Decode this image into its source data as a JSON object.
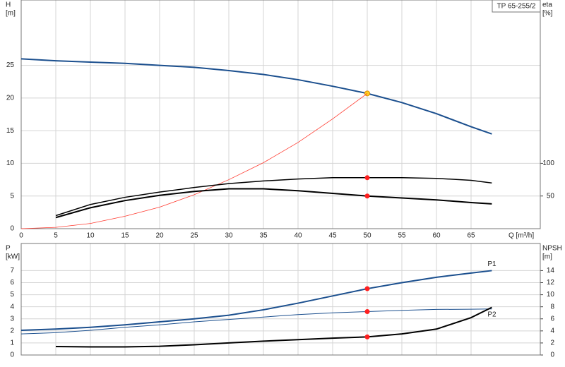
{
  "chart_data": [
    {
      "type": "line",
      "title": "TP 65-255/2",
      "ylabel": "H",
      "yunit": "[m]",
      "y2label": "eta",
      "y2unit": "[%]",
      "xlabel": "Q [m³/h]",
      "x": [
        0,
        5,
        10,
        15,
        20,
        25,
        30,
        35,
        40,
        45,
        50,
        55,
        60,
        65,
        68
      ],
      "xlim": [
        0,
        75
      ],
      "xticks": [
        0,
        5,
        10,
        15,
        20,
        25,
        30,
        35,
        40,
        45,
        50,
        55,
        60,
        65
      ],
      "show_xtick_labels": true,
      "ylim": [
        0,
        35
      ],
      "yticks": [
        0,
        5,
        10,
        15,
        20,
        25
      ],
      "y2lim": [
        0,
        350
      ],
      "y2ticks": [
        50,
        100
      ],
      "grid": true,
      "marker_x": 50,
      "series": [
        {
          "color": "#1b4f8e",
          "line_width": 2,
          "marker_color": "#ffd21f",
          "values": [
            26,
            25.7,
            25.5,
            25.3,
            25.0,
            24.7,
            24.2,
            23.6,
            22.8,
            21.8,
            20.7,
            19.3,
            17.6,
            15.6,
            14.5
          ]
        },
        {
          "color": "#ff3b30",
          "line_width": 0.8,
          "values": [
            0,
            0.2,
            0.8,
            1.9,
            3.3,
            5.2,
            7.5,
            10.1,
            13.2,
            16.8,
            20.7,
            null,
            null,
            null,
            null
          ]
        },
        {
          "color": "#000000",
          "line_width": 1.5,
          "axis": "y2",
          "marker_color": "#ff2020",
          "values": [
            null,
            20,
            37,
            48,
            56,
            63,
            69,
            73,
            76,
            78,
            78,
            78,
            77,
            74,
            70
          ]
        },
        {
          "color": "#000000",
          "line_width": 2,
          "axis": "y2",
          "marker_color": "#ff2020",
          "values": [
            null,
            17,
            32,
            43,
            51,
            57,
            61,
            61,
            58,
            54,
            50,
            47,
            44,
            40,
            38
          ]
        }
      ]
    },
    {
      "type": "line",
      "ylabel": "P",
      "yunit": "[kW]",
      "y2label": "NPSH",
      "y2unit": "[m]",
      "x": [
        0,
        5,
        10,
        15,
        20,
        25,
        30,
        35,
        40,
        45,
        50,
        55,
        60,
        65,
        68
      ],
      "xlim": [
        0,
        75
      ],
      "xticks": [
        0,
        5,
        10,
        15,
        20,
        25,
        30,
        35,
        40,
        45,
        50,
        55,
        60,
        65
      ],
      "show_xtick_labels": false,
      "ylim": [
        0,
        9.25
      ],
      "yticks": [
        0,
        1,
        2,
        3,
        4,
        5,
        6,
        7
      ],
      "y2lim": [
        0,
        18.5
      ],
      "y2ticks": [
        0,
        2,
        4,
        6,
        8,
        10,
        12,
        14
      ],
      "grid": true,
      "marker_x": 50,
      "series": [
        {
          "name": "P1",
          "color": "#1b4f8e",
          "line_width": 2,
          "marker_color": "#ff2020",
          "values": [
            2.05,
            2.15,
            2.3,
            2.5,
            2.75,
            3.0,
            3.3,
            3.75,
            4.3,
            4.9,
            5.5,
            6.0,
            6.45,
            6.8,
            7.0
          ]
        },
        {
          "name": "P2",
          "color": "#1b4f8e",
          "line_width": 1,
          "marker_color": "#ff2020",
          "values": [
            1.75,
            1.85,
            2.05,
            2.3,
            2.5,
            2.75,
            2.95,
            3.15,
            3.35,
            3.5,
            3.6,
            3.7,
            3.78,
            3.8,
            3.82
          ]
        },
        {
          "color": "#000000",
          "line_width": 2,
          "axis": "y2",
          "marker_color": "#ff2020",
          "values": [
            null,
            1.4,
            1.35,
            1.35,
            1.45,
            1.7,
            2.0,
            2.3,
            2.55,
            2.8,
            3.0,
            3.5,
            4.3,
            6.2,
            7.9
          ]
        }
      ]
    }
  ]
}
